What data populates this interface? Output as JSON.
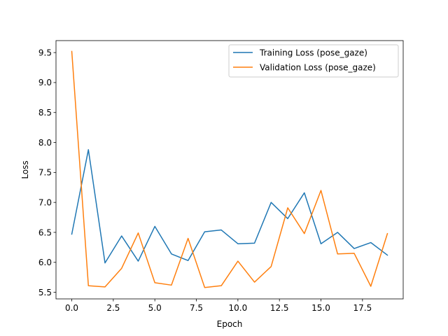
{
  "chart_data": {
    "type": "line",
    "title": "",
    "xlabel": "Epoch",
    "ylabel": "Loss",
    "xlim": [
      -0.95,
      19.95
    ],
    "ylim": [
      5.39,
      9.7
    ],
    "x_ticks": [
      0.0,
      2.5,
      5.0,
      7.5,
      10.0,
      12.5,
      15.0,
      17.5
    ],
    "x_tick_labels": [
      "0.0",
      "2.5",
      "5.0",
      "7.5",
      "10.0",
      "12.5",
      "15.0",
      "17.5"
    ],
    "y_ticks": [
      5.5,
      6.0,
      6.5,
      7.0,
      7.5,
      8.0,
      8.5,
      9.0,
      9.5
    ],
    "y_tick_labels": [
      "5.5",
      "6.0",
      "6.5",
      "7.0",
      "7.5",
      "8.0",
      "8.5",
      "9.0",
      "9.5"
    ],
    "grid": false,
    "legend_position": "top-right",
    "x": [
      0,
      1,
      2,
      3,
      4,
      5,
      6,
      7,
      8,
      9,
      10,
      11,
      12,
      13,
      14,
      15,
      16,
      17,
      18,
      19
    ],
    "series": [
      {
        "name": "Training Loss (pose_gaze)",
        "color": "#1f77b4",
        "values": [
          6.47,
          7.88,
          5.99,
          6.44,
          6.02,
          6.6,
          6.14,
          6.03,
          6.51,
          6.54,
          6.31,
          6.32,
          7.0,
          6.73,
          7.16,
          6.31,
          6.5,
          6.23,
          6.33,
          6.12
        ]
      },
      {
        "name": "Validation Loss (pose_gaze)",
        "color": "#ff7f0e",
        "values": [
          9.52,
          5.61,
          5.59,
          5.9,
          6.49,
          5.66,
          5.62,
          6.4,
          5.58,
          5.61,
          6.02,
          5.67,
          5.93,
          6.91,
          6.48,
          7.2,
          6.14,
          6.15,
          5.6,
          6.48
        ]
      }
    ]
  }
}
